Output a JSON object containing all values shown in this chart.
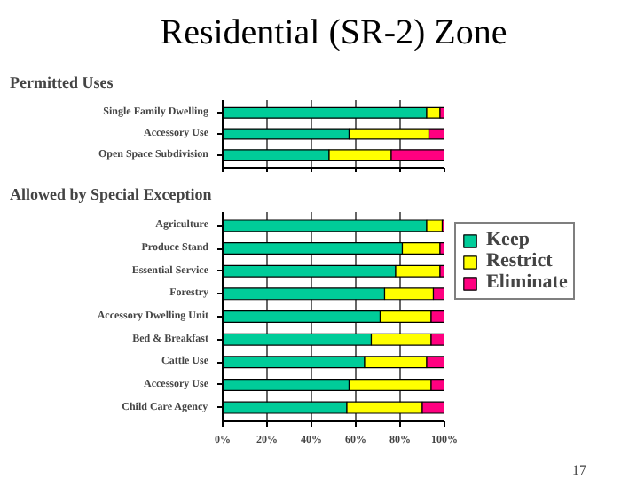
{
  "chart_data": [
    {
      "type": "bar",
      "title": "Residential (SR-2) Zone",
      "subtitle": "Permitted Uses",
      "orientation": "horizontal",
      "stacked": true,
      "categories": [
        "Single Family Dwelling",
        "Accessory Use",
        "Open Space Subdivision"
      ],
      "series": [
        {
          "color": "#00cc99",
          "values": [
            92,
            57,
            48
          ]
        },
        {
          "color": "#ffff00",
          "values": [
            6,
            36,
            28
          ]
        },
        {
          "color": "#ff0080",
          "values": [
            2,
            7,
            24
          ]
        }
      ],
      "xlim": [
        0,
        100
      ],
      "xticks": [
        0,
        20,
        40,
        60,
        80,
        100
      ],
      "tick_labels": "y",
      "grid": "x",
      "legend": false
    },
    {
      "type": "bar",
      "title": "Allowed by Special Exception",
      "orientation": "horizontal",
      "stacked": true,
      "categories": [
        "Agriculture",
        "Produce Stand",
        "Essential Service",
        "Forestry",
        "Accessory Dwelling Unit",
        "Bed & Breakfast",
        "Cattle Use",
        "Accessory Use",
        "Child Care Agency"
      ],
      "series": [
        {
          "name": "Keep",
          "color": "#00cc99",
          "values": [
            92,
            81,
            78,
            73,
            71,
            67,
            64,
            57,
            56
          ]
        },
        {
          "name": "Restrict",
          "color": "#ffff00",
          "values": [
            7,
            17,
            20,
            22,
            23,
            27,
            28,
            37,
            34
          ]
        },
        {
          "name": "Eliminate",
          "color": "#ff0080",
          "values": [
            1,
            2,
            2,
            5,
            6,
            6,
            8,
            6,
            10
          ]
        }
      ],
      "xlim": [
        0,
        100
      ],
      "xticks": [
        {
          "value": 0,
          "label": "0%"
        },
        {
          "value": 20,
          "label": "20%"
        },
        {
          "value": 40,
          "label": "40%"
        },
        {
          "value": 60,
          "label": "60%"
        },
        {
          "value": 80,
          "label": "80%"
        },
        {
          "value": 100,
          "label": "100%"
        }
      ],
      "grid": "x",
      "legend": "right",
      "annotations": [
        "17"
      ]
    }
  ]
}
